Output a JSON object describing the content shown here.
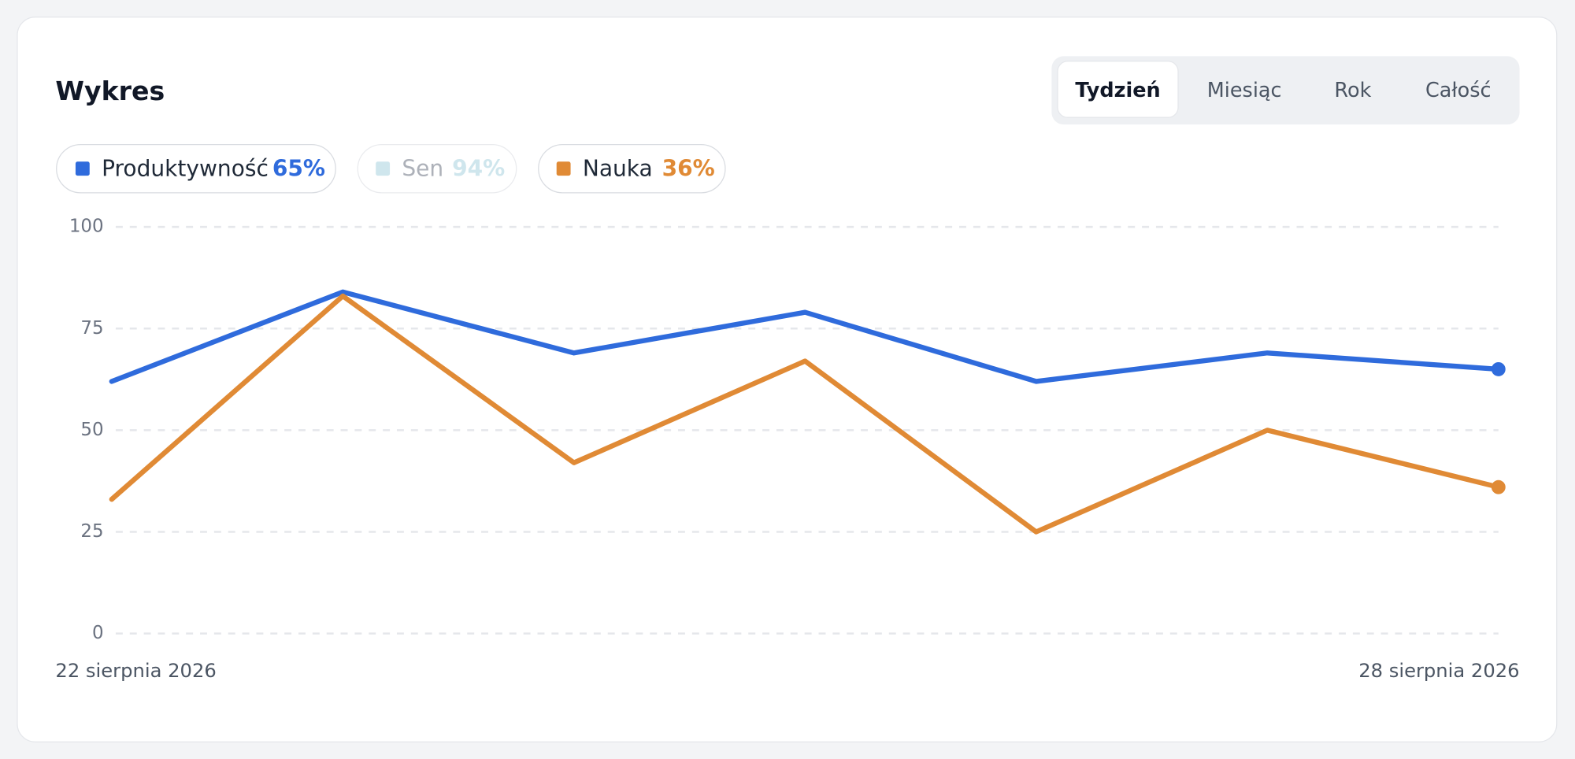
{
  "chart_data": {
    "type": "line",
    "title": "Wykres",
    "tabs": [
      "Tydzień",
      "Miesiąc",
      "Rok",
      "Całość"
    ],
    "active_tab": 0,
    "categories": [
      "22 sierpnia 2026",
      null,
      null,
      null,
      null,
      null,
      "28 sierpnia 2026"
    ],
    "series": [
      {
        "name": "Produktywność",
        "color": "#2f6bdc",
        "values": [
          62,
          84,
          69,
          79,
          62,
          69,
          65
        ],
        "summary": {
          "value": 65,
          "label": "65%"
        }
      },
      {
        "name": "Sen",
        "color": "#a9d3df",
        "hidden": true,
        "summary": {
          "value": 94,
          "label": "94%"
        }
      },
      {
        "name": "Nauka",
        "color": "#e08a35",
        "values": [
          33,
          83,
          42,
          67,
          25,
          50,
          36
        ],
        "summary": {
          "value": 36,
          "label": "36%"
        }
      }
    ],
    "ylim": [
      0,
      100
    ],
    "yticks": [
      0,
      25,
      50,
      75,
      100
    ],
    "grid": true
  }
}
